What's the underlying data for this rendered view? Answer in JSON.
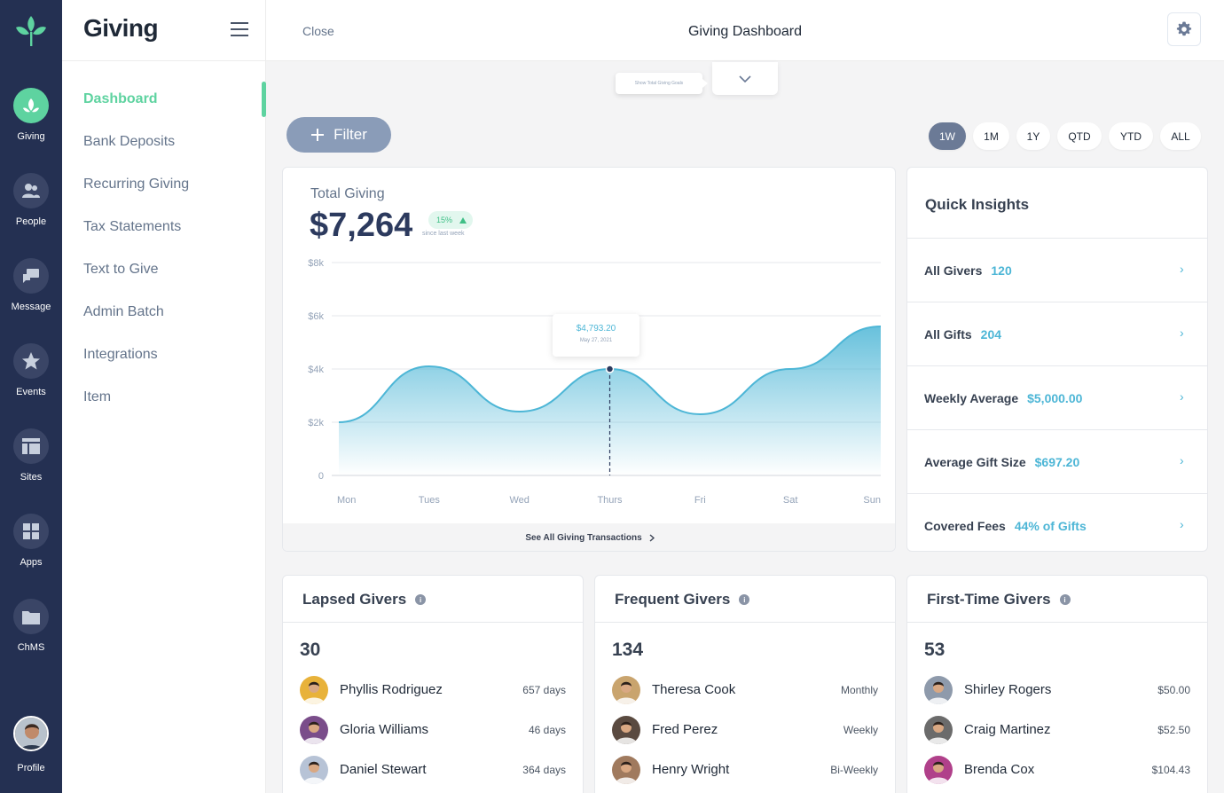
{
  "rail": {
    "items": [
      {
        "label": "Giving",
        "icon": "leaf-icon"
      },
      {
        "label": "People",
        "icon": "people-icon"
      },
      {
        "label": "Message",
        "icon": "chat-icon"
      },
      {
        "label": "Events",
        "icon": "star-icon"
      },
      {
        "label": "Sites",
        "icon": "layout-icon"
      },
      {
        "label": "Apps",
        "icon": "grid-icon"
      },
      {
        "label": "ChMS",
        "icon": "folder-icon"
      }
    ],
    "profile_label": "Profile"
  },
  "subnav": {
    "title": "Giving",
    "items": [
      {
        "label": "Dashboard"
      },
      {
        "label": "Bank Deposits"
      },
      {
        "label": "Recurring Giving"
      },
      {
        "label": "Tax Statements"
      },
      {
        "label": "Text to Give"
      },
      {
        "label": "Admin Batch"
      },
      {
        "label": "Integrations"
      },
      {
        "label": "Item"
      }
    ]
  },
  "topbar": {
    "close_label": "Close",
    "title": "Giving Dashboard"
  },
  "goals_tip": "Show Total Giving Goals",
  "filter_label": "Filter",
  "ranges": [
    "1W",
    "1M",
    "1Y",
    "QTD",
    "YTD",
    "ALL"
  ],
  "active_range": "1W",
  "total_giving": {
    "label": "Total Giving",
    "value": "$7,264",
    "badge": "15%",
    "since": "since last week",
    "tooltip_value": "$4,793.20",
    "tooltip_date": "May 27, 2021",
    "see_all": "See All Giving Transactions"
  },
  "chart_data": {
    "type": "area",
    "categories": [
      "Mon",
      "Tues",
      "Wed",
      "Thurs",
      "Fri",
      "Sat",
      "Sun"
    ],
    "values": [
      2000,
      4100,
      2400,
      4000,
      2300,
      4000,
      5600
    ],
    "y_ticks": [
      "0",
      "$2k",
      "$4k",
      "$6k",
      "$8k"
    ],
    "ylim": [
      0,
      8000
    ],
    "grid": true,
    "color": "#4db6d6"
  },
  "quick_insights": {
    "title": "Quick Insights",
    "rows": [
      {
        "label": "All Givers",
        "value": "120"
      },
      {
        "label": "All Gifts",
        "value": "204"
      },
      {
        "label": "Weekly Average",
        "value": "$5,000.00"
      },
      {
        "label": "Average Gift Size",
        "value": "$697.20"
      },
      {
        "label": "Covered Fees",
        "value": "44% of Gifts"
      }
    ]
  },
  "lapsed": {
    "title": "Lapsed Givers",
    "count": "30",
    "rows": [
      {
        "name": "Phyllis Rodriguez",
        "meta": "657 days",
        "color": "#e8b23a"
      },
      {
        "name": "Gloria Williams",
        "meta": "46 days",
        "color": "#7a4d8a"
      },
      {
        "name": "Daniel Stewart",
        "meta": "364 days",
        "color": "#b7c3d6"
      }
    ]
  },
  "frequent": {
    "title": "Frequent Givers",
    "count": "134",
    "rows": [
      {
        "name": "Theresa Cook",
        "meta": "Monthly",
        "color": "#c9a46e"
      },
      {
        "name": "Fred Perez",
        "meta": "Weekly",
        "color": "#5a4a40"
      },
      {
        "name": "Henry Wright",
        "meta": "Bi-Weekly",
        "color": "#a07a5e"
      }
    ]
  },
  "first_time": {
    "title": "First-Time Givers",
    "count": "53",
    "rows": [
      {
        "name": "Shirley Rogers",
        "meta": "$50.00",
        "color": "#8e9aab"
      },
      {
        "name": "Craig Martinez",
        "meta": "$52.50",
        "color": "#6b6b6b"
      },
      {
        "name": "Brenda Cox",
        "meta": "$104.43",
        "color": "#b0408a"
      }
    ]
  }
}
